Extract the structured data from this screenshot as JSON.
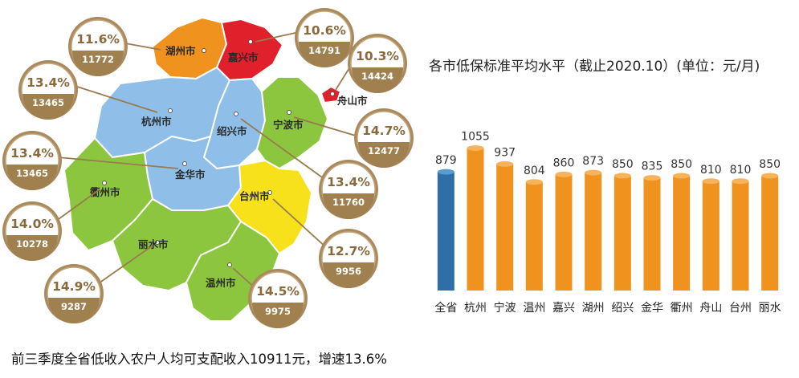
{
  "map": {
    "regions": [
      {
        "key": "huzhou",
        "name": "湖州市",
        "pct": "11.6%",
        "income": "11772",
        "color": "#f0921e"
      },
      {
        "key": "jiaxing",
        "name": "嘉兴市",
        "pct": "10.6%",
        "income": "14791",
        "color": "#e0202a"
      },
      {
        "key": "zhoushan",
        "name": "舟山市",
        "pct": "10.3%",
        "income": "14424",
        "color": "#e0202a"
      },
      {
        "key": "hangzhou",
        "name": "杭州市",
        "pct": "13.4%",
        "income": "13465",
        "color": "#8fbfe8"
      },
      {
        "key": "shaoxing",
        "name": "绍兴市",
        "pct": "13.4%",
        "income": "11760",
        "color": "#8fbfe8"
      },
      {
        "key": "ningbo",
        "name": "宁波市",
        "pct": "14.7%",
        "income": "12477",
        "color": "#8cc63f"
      },
      {
        "key": "jinhua",
        "name": "金华市",
        "pct": "13.4%",
        "income": "13465",
        "color": "#8fbfe8"
      },
      {
        "key": "quzhou",
        "name": "衢州市",
        "pct": "14.0%",
        "income": "10278",
        "color": "#8cc63f"
      },
      {
        "key": "taizhou",
        "name": "台州市",
        "pct": "12.7%",
        "income": "9956",
        "color": "#f7e11b"
      },
      {
        "key": "lishui",
        "name": "丽水市",
        "pct": "14.9%",
        "income": "9287",
        "color": "#8cc63f"
      },
      {
        "key": "wenzhou",
        "name": "温州市",
        "pct": "14.5%",
        "income": "9975",
        "color": "#8cc63f"
      }
    ]
  },
  "chart_data": {
    "type": "bar",
    "title": "各市低保标准平均水平（截止2020.10）(单位：元/月)",
    "categories": [
      "全省",
      "杭州",
      "宁波",
      "温州",
      "嘉兴",
      "湖州",
      "绍兴",
      "金华",
      "衢州",
      "舟山",
      "台州",
      "丽水"
    ],
    "values": [
      879,
      1055,
      937,
      804,
      860,
      873,
      850,
      835,
      850,
      810,
      810,
      850
    ],
    "colors": [
      "#2f6fa8",
      "#f0921e",
      "#f0921e",
      "#f0921e",
      "#f0921e",
      "#f0921e",
      "#f0921e",
      "#f0921e",
      "#f0921e",
      "#f0921e",
      "#f0921e",
      "#f0921e"
    ],
    "xlabel": "",
    "ylabel": "",
    "ylim": [
      0,
      1100
    ],
    "grid": false
  },
  "footer": {
    "text": "前三季度全省低收入农户人均可支配收入10911元，增速13.6%"
  }
}
